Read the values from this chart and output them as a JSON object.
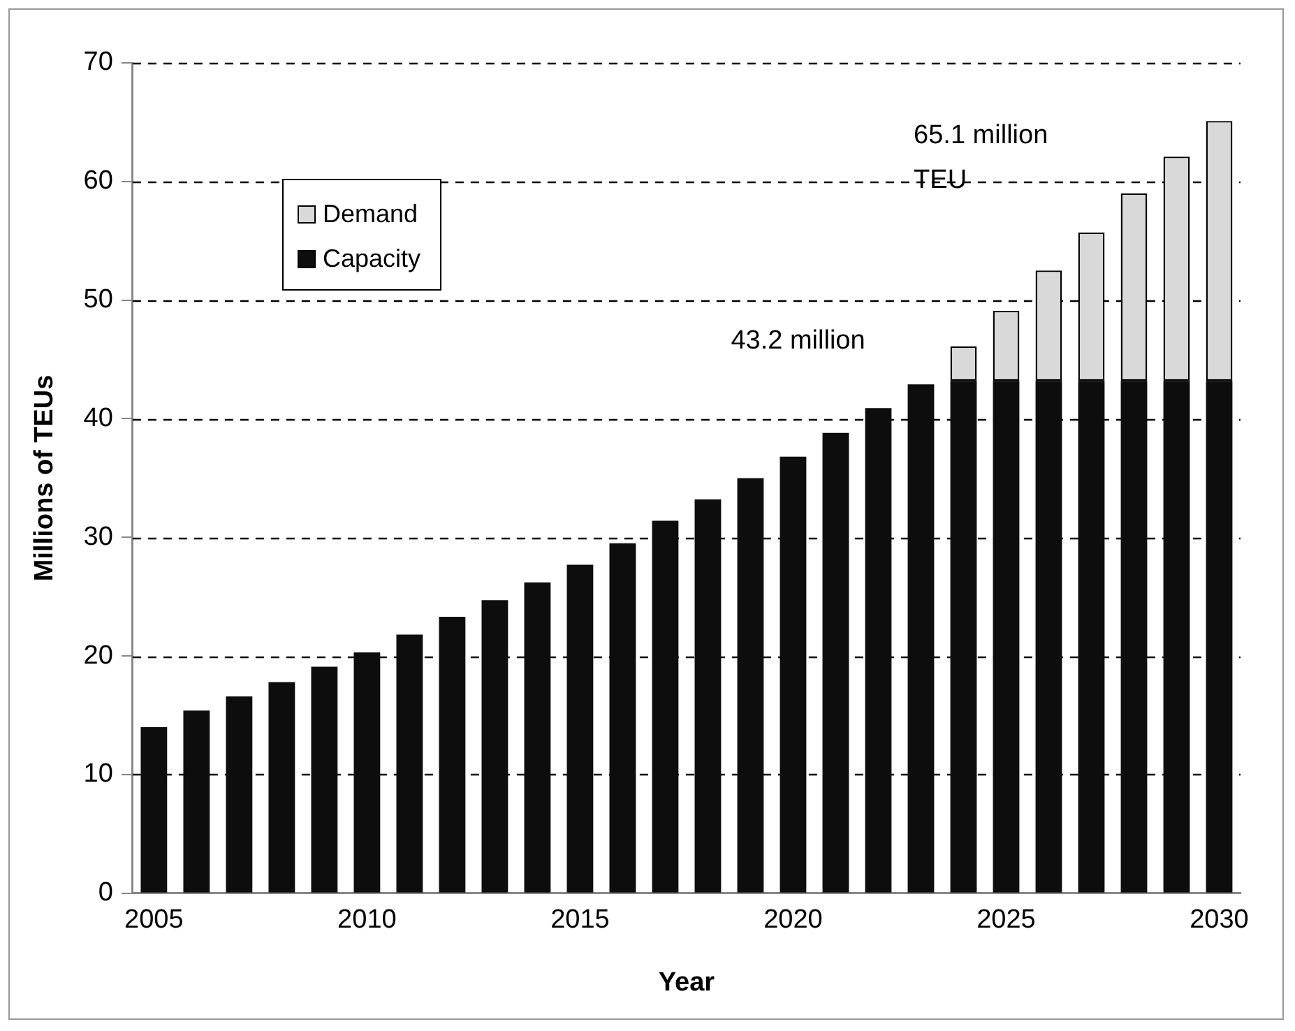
{
  "chart_data": {
    "type": "bar",
    "stacked": true,
    "xlabel": "Year",
    "ylabel": "Millions of TEUs",
    "x": [
      2005,
      2006,
      2007,
      2008,
      2009,
      2010,
      2011,
      2012,
      2013,
      2014,
      2015,
      2016,
      2017,
      2018,
      2019,
      2020,
      2021,
      2022,
      2023,
      2024,
      2025,
      2026,
      2027,
      2028,
      2029,
      2030
    ],
    "xlim": [
      2004.5,
      2030.5
    ],
    "xticks": [
      2005,
      2010,
      2015,
      2020,
      2025,
      2030
    ],
    "ylim": [
      0,
      70
    ],
    "yticks": [
      0,
      10,
      20,
      30,
      40,
      50,
      60,
      70
    ],
    "series": [
      {
        "name": "Capacity",
        "color": "#0d0d0d",
        "values": [
          14.0,
          15.4,
          16.6,
          17.8,
          19.1,
          20.3,
          21.8,
          23.3,
          24.7,
          26.2,
          27.7,
          29.5,
          31.4,
          33.2,
          35.0,
          36.8,
          38.8,
          40.9,
          42.9,
          43.2,
          43.2,
          43.2,
          43.2,
          43.2,
          43.2,
          43.2
        ]
      },
      {
        "name": "Demand",
        "color": "#d9d9d9",
        "values": [
          null,
          null,
          null,
          null,
          null,
          null,
          null,
          null,
          null,
          null,
          null,
          null,
          null,
          null,
          null,
          null,
          null,
          null,
          null,
          2.9,
          5.9,
          9.3,
          12.5,
          15.8,
          18.9,
          21.9
        ]
      }
    ],
    "annotations": [
      "43.2 million",
      "65.1 million TEU"
    ],
    "grid": "y",
    "legend": "top left"
  }
}
